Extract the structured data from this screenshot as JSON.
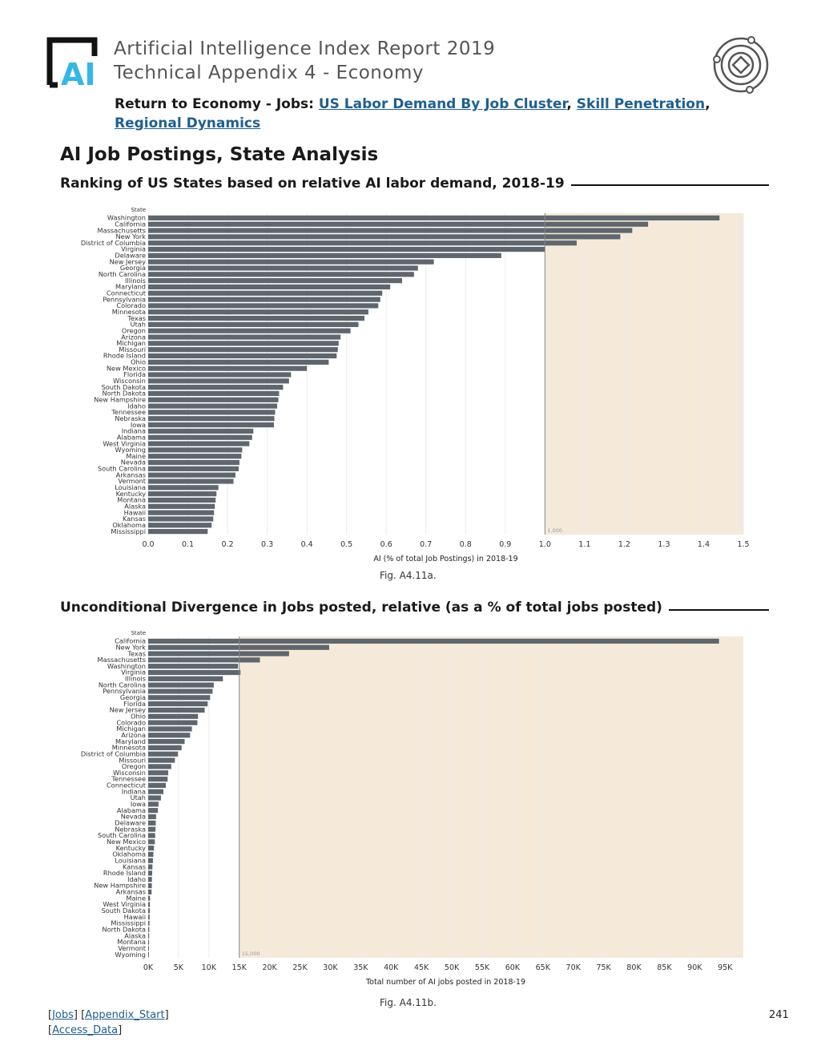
{
  "header": {
    "title_line1": "Artificial Intelligence Index Report 2019",
    "title_line2": "Technical Appendix 4 - Economy",
    "logo_text": "AI",
    "accent_color": "#1f5f8f"
  },
  "nav": {
    "prefix": "Return to Economy - Jobs: ",
    "links": [
      "US Labor Demand By Job Cluster",
      "Skill Penetration",
      "Regional Dynamics"
    ],
    "sep": ", "
  },
  "section_title": "AI Job Postings, State Analysis",
  "chart_data": [
    {
      "type": "bar",
      "orientation": "horizontal",
      "title": "Ranking of US States based on relative AI labor demand, 2018-19",
      "ylabel": "State",
      "xlabel": "AI (% of total Job Postings) in 2018-19",
      "xlim": [
        0,
        1.5
      ],
      "tick_values": [
        0.0,
        0.1,
        0.2,
        0.3,
        0.4,
        0.5,
        0.6,
        0.7,
        0.8,
        0.9,
        1.0,
        1.1,
        1.2,
        1.3,
        1.4,
        1.5
      ],
      "tick_labels": [
        "0.0",
        "0.1",
        "0.2",
        "0.3",
        "0.4",
        "0.5",
        "0.6",
        "0.7",
        "0.8",
        "0.9",
        "1.0",
        "1.1",
        "1.2",
        "1.3",
        "1.4",
        "1.5"
      ],
      "reference_value": 1.0,
      "reference_label": "1.000",
      "bar_color": "#5f666d",
      "shade_color": "#f5e9d9",
      "figure_label": "Fig. A4.11a.",
      "categories": [
        "Washington",
        "California",
        "Massachusetts",
        "New York",
        "District of Columbia",
        "Virginia",
        "Delaware",
        "New Jersey",
        "Georgia",
        "North Carolina",
        "Illinois",
        "Maryland",
        "Connecticut",
        "Pennsylvania",
        "Colorado",
        "Minnesota",
        "Texas",
        "Utah",
        "Oregon",
        "Arizona",
        "Michigan",
        "Missouri",
        "Rhode Island",
        "Ohio",
        "New Mexico",
        "Florida",
        "Wisconsin",
        "South Dakota",
        "North Dakota",
        "New Hampshire",
        "Idaho",
        "Tennessee",
        "Nebraska",
        "Iowa",
        "Indiana",
        "Alabama",
        "West Virginia",
        "Wyoming",
        "Maine",
        "Nevada",
        "South Carolina",
        "Arkansas",
        "Vermont",
        "Louisiana",
        "Kentucky",
        "Montana",
        "Alaska",
        "Hawaii",
        "Kansas",
        "Oklahoma",
        "Mississippi"
      ],
      "values": [
        1.44,
        1.26,
        1.22,
        1.19,
        1.08,
        1.0,
        0.89,
        0.72,
        0.68,
        0.67,
        0.64,
        0.61,
        0.59,
        0.585,
        0.58,
        0.555,
        0.545,
        0.53,
        0.51,
        0.485,
        0.48,
        0.478,
        0.475,
        0.455,
        0.4,
        0.36,
        0.355,
        0.34,
        0.33,
        0.328,
        0.325,
        0.32,
        0.318,
        0.317,
        0.265,
        0.262,
        0.255,
        0.237,
        0.235,
        0.23,
        0.228,
        0.22,
        0.215,
        0.177,
        0.172,
        0.17,
        0.168,
        0.166,
        0.164,
        0.16,
        0.15
      ]
    },
    {
      "type": "bar",
      "orientation": "horizontal",
      "title": "Unconditional Divergence in Jobs posted, relative (as a % of total jobs posted)",
      "ylabel": "State",
      "xlabel": "Total number of AI jobs posted in 2018-19",
      "xlim": [
        0,
        98000
      ],
      "tick_values": [
        0,
        5000,
        10000,
        15000,
        20000,
        25000,
        30000,
        35000,
        40000,
        45000,
        50000,
        55000,
        60000,
        65000,
        70000,
        75000,
        80000,
        85000,
        90000,
        95000
      ],
      "tick_labels": [
        "0K",
        "5K",
        "10K",
        "15K",
        "20K",
        "25K",
        "30K",
        "35K",
        "40K",
        "45K",
        "50K",
        "55K",
        "60K",
        "65K",
        "70K",
        "75K",
        "80K",
        "85K",
        "90K",
        "95K"
      ],
      "reference_value": 15000,
      "reference_label": "15,000",
      "bar_color": "#5f666d",
      "shade_color": "#f5e9d9",
      "figure_label": "Fig. A4.11b.",
      "categories": [
        "California",
        "New York",
        "Texas",
        "Massachusetts",
        "Washington",
        "Virginia",
        "Illinois",
        "North Carolina",
        "Pennsylvania",
        "Georgia",
        "Florida",
        "New Jersey",
        "Ohio",
        "Colorado",
        "Michigan",
        "Arizona",
        "Maryland",
        "Minnesota",
        "District of Columbia",
        "Missouri",
        "Oregon",
        "Wisconsin",
        "Tennessee",
        "Connecticut",
        "Indiana",
        "Utah",
        "Iowa",
        "Alabama",
        "Nevada",
        "Delaware",
        "Nebraska",
        "South Carolina",
        "New Mexico",
        "Kentucky",
        "Oklahoma",
        "Louisiana",
        "Kansas",
        "Rhode Island",
        "Idaho",
        "New Hampshire",
        "Arkansas",
        "Maine",
        "West Virginia",
        "South Dakota",
        "Hawaii",
        "Mississippi",
        "North Dakota",
        "Alaska",
        "Montana",
        "Vermont",
        "Wyoming"
      ],
      "values": [
        94000,
        29800,
        23200,
        18400,
        14800,
        15200,
        12300,
        10800,
        10600,
        10200,
        9800,
        9300,
        8200,
        8100,
        7200,
        6900,
        6000,
        5500,
        4900,
        4400,
        3800,
        3300,
        3200,
        2900,
        2500,
        2100,
        1700,
        1600,
        1300,
        1250,
        1200,
        1150,
        1100,
        950,
        850,
        780,
        700,
        660,
        620,
        600,
        560,
        300,
        280,
        260,
        230,
        210,
        180,
        160,
        140,
        120,
        100
      ]
    }
  ],
  "footer": {
    "links_line1": [
      "Jobs",
      "Appendix_Start"
    ],
    "links_line2": [
      "Access_Data"
    ],
    "page_number": "241"
  }
}
